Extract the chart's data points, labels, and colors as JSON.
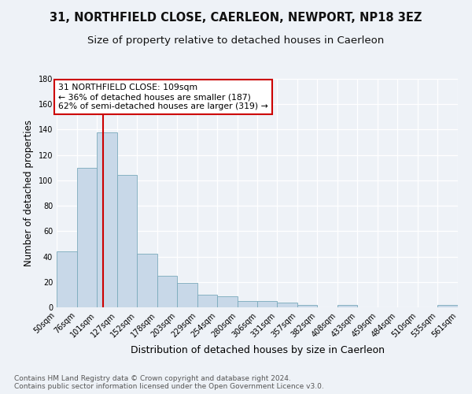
{
  "title1": "31, NORTHFIELD CLOSE, CAERLEON, NEWPORT, NP18 3EZ",
  "title2": "Size of property relative to detached houses in Caerleon",
  "xlabel": "Distribution of detached houses by size in Caerleon",
  "ylabel": "Number of detached properties",
  "footnote": "Contains HM Land Registry data © Crown copyright and database right 2024.\nContains public sector information licensed under the Open Government Licence v3.0.",
  "bin_labels": [
    "50sqm",
    "76sqm",
    "101sqm",
    "127sqm",
    "152sqm",
    "178sqm",
    "203sqm",
    "229sqm",
    "254sqm",
    "280sqm",
    "306sqm",
    "331sqm",
    "357sqm",
    "382sqm",
    "408sqm",
    "433sqm",
    "459sqm",
    "484sqm",
    "510sqm",
    "535sqm",
    "561sqm"
  ],
  "bin_edges": [
    50,
    76,
    101,
    127,
    152,
    178,
    203,
    229,
    254,
    280,
    306,
    331,
    357,
    382,
    408,
    433,
    459,
    484,
    510,
    535,
    561
  ],
  "bar_heights": [
    44,
    110,
    138,
    104,
    42,
    25,
    19,
    10,
    9,
    5,
    5,
    4,
    2,
    0,
    2,
    0,
    0,
    0,
    0,
    2
  ],
  "bar_color": "#c8d8e8",
  "bar_edge_color": "#7aaabb",
  "property_size": 109,
  "vline_color": "#cc0000",
  "annotation_text": "31 NORTHFIELD CLOSE: 109sqm\n← 36% of detached houses are smaller (187)\n62% of semi-detached houses are larger (319) →",
  "annotation_box_color": "#ffffff",
  "annotation_border_color": "#cc0000",
  "ylim": [
    0,
    180
  ],
  "yticks": [
    0,
    20,
    40,
    60,
    80,
    100,
    120,
    140,
    160,
    180
  ],
  "background_color": "#eef2f7",
  "grid_color": "#ffffff",
  "title1_fontsize": 10.5,
  "title2_fontsize": 9.5,
  "xlabel_fontsize": 9,
  "ylabel_fontsize": 8.5,
  "tick_fontsize": 7,
  "footnote_fontsize": 6.5
}
